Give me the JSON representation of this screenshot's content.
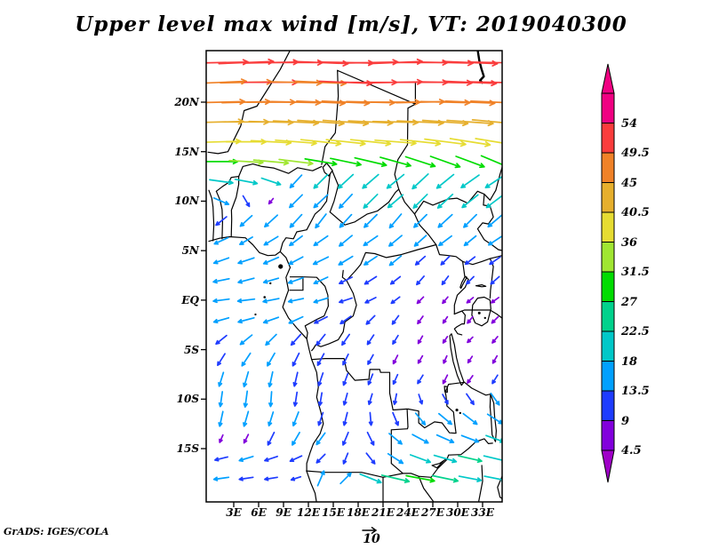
{
  "chart_data": {
    "type": "vector-field-map",
    "title": "Upper level max wind [m/s], VT: 2019040300",
    "variable": "Upper level max wind",
    "units": "m/s",
    "valid_time": "2019040300",
    "credit": "GrADS: IGES/COLA",
    "map_extent": {
      "lon_min": -0.3,
      "lon_max": 35.4,
      "lat_min": -20.4,
      "lat_max": 25.2
    },
    "x_axis": {
      "labels": [
        "3E",
        "6E",
        "9E",
        "12E",
        "15E",
        "18E",
        "21E",
        "24E",
        "27E",
        "30E",
        "33E"
      ],
      "lons": [
        3,
        6,
        9,
        12,
        15,
        18,
        21,
        24,
        27,
        30,
        33
      ]
    },
    "y_axis": {
      "labels": [
        "20N",
        "15N",
        "10N",
        "5N",
        "EQ",
        "5S",
        "10S",
        "15S"
      ],
      "lats": [
        20,
        15,
        10,
        5,
        0,
        -5,
        -10,
        -15
      ]
    },
    "colorbar": {
      "orientation": "vertical-right",
      "levels": [
        4.5,
        9,
        13.5,
        18,
        22.5,
        27,
        31.5,
        36,
        40.5,
        45,
        49.5,
        54
      ],
      "labels": [
        "4.5",
        "9",
        "13.5",
        "18",
        "22.5",
        "27",
        "31.5",
        "36",
        "40.5",
        "45",
        "49.5",
        "54"
      ],
      "colors": [
        "#A000C8",
        "#8200DC",
        "#1E3CFF",
        "#00A0FF",
        "#00C8C8",
        "#00D28C",
        "#00DC00",
        "#A0E632",
        "#E6DC32",
        "#E6AF2D",
        "#F08228",
        "#FA3C3C",
        "#F00082"
      ]
    },
    "reference_vector": {
      "value": 10,
      "label": "10"
    },
    "wind_grid": {
      "lons": [
        1.5,
        4.5,
        7.5,
        10.5,
        13.5,
        16.5,
        19.5,
        22.5,
        25.5,
        28.5,
        31.5,
        34.5
      ],
      "lats": [
        24,
        22,
        20,
        18,
        16,
        14,
        12,
        10,
        8,
        6,
        4,
        2,
        0,
        -2,
        -4,
        -6,
        -8,
        -10,
        -12,
        -14,
        -16,
        -18
      ],
      "uv": [
        [
          [
            51,
            1
          ],
          [
            52,
            2
          ],
          [
            52,
            1
          ],
          [
            51,
            0
          ],
          [
            52,
            -2
          ],
          [
            53,
            -1
          ],
          [
            52,
            1
          ],
          [
            51,
            2
          ],
          [
            52,
            0
          ],
          [
            53,
            -1
          ],
          [
            52,
            -2
          ],
          [
            51,
            -1
          ]
        ],
        [
          [
            48,
            2
          ],
          [
            49,
            1
          ],
          [
            50,
            0
          ],
          [
            49,
            -1
          ],
          [
            48,
            -2
          ],
          [
            50,
            -2
          ],
          [
            50,
            0
          ],
          [
            51,
            1
          ],
          [
            52,
            0
          ],
          [
            51,
            -1
          ],
          [
            50,
            -2
          ],
          [
            50,
            -1
          ]
        ],
        [
          [
            45,
            1
          ],
          [
            46,
            1
          ],
          [
            46,
            0
          ],
          [
            47,
            -1
          ],
          [
            46,
            -2
          ],
          [
            45,
            -2
          ],
          [
            46,
            -1
          ],
          [
            47,
            0
          ],
          [
            46,
            1
          ],
          [
            47,
            -1
          ],
          [
            47,
            -2
          ],
          [
            46,
            -2
          ]
        ],
        [
          [
            42,
            1
          ],
          [
            43,
            0
          ],
          [
            42,
            -1
          ],
          [
            43,
            -2
          ],
          [
            44,
            -3
          ],
          [
            43,
            -3
          ],
          [
            42,
            -2
          ],
          [
            43,
            -1
          ],
          [
            44,
            -2
          ],
          [
            43,
            -3
          ],
          [
            44,
            -3
          ],
          [
            43,
            -4
          ]
        ],
        [
          [
            37,
            1
          ],
          [
            38,
            0
          ],
          [
            38,
            -2
          ],
          [
            39,
            -3
          ],
          [
            38,
            -4
          ],
          [
            37,
            -4
          ],
          [
            38,
            -4
          ],
          [
            39,
            -3
          ],
          [
            38,
            -4
          ],
          [
            39,
            -5
          ],
          [
            38,
            -6
          ],
          [
            37,
            -6
          ]
        ],
        [
          [
            31,
            0
          ],
          [
            32,
            -2
          ],
          [
            33,
            -3
          ],
          [
            32,
            -4
          ],
          [
            30,
            -5
          ],
          [
            29,
            -6
          ],
          [
            30,
            -7
          ],
          [
            29,
            -8
          ],
          [
            28,
            -9
          ],
          [
            28,
            -10
          ],
          [
            27,
            -10
          ],
          [
            26,
            -11
          ]
        ],
        [
          [
            22,
            -3
          ],
          [
            21,
            -4
          ],
          [
            18,
            -6
          ],
          [
            -11,
            -12
          ],
          [
            -13,
            -13
          ],
          [
            -14,
            -13
          ],
          [
            -15,
            -13
          ],
          [
            -16,
            -13
          ],
          [
            -15,
            -14
          ],
          [
            -16,
            -13
          ],
          [
            -17,
            -12
          ],
          [
            -18,
            -12
          ]
        ],
        [
          [
            14,
            -6
          ],
          [
            6,
            -10
          ],
          [
            -4,
            -5
          ],
          [
            -12,
            -12
          ],
          [
            -13,
            -12
          ],
          [
            -12,
            -13
          ],
          [
            -13,
            -13
          ],
          [
            -14,
            -12
          ],
          [
            -13,
            -13
          ],
          [
            -14,
            -13
          ],
          [
            -15,
            -12
          ],
          [
            -16,
            -12
          ]
        ],
        [
          [
            -10,
            -8
          ],
          [
            -11,
            -10
          ],
          [
            -12,
            -11
          ],
          [
            -11,
            -12
          ],
          [
            -10,
            -13
          ],
          [
            -11,
            -12
          ],
          [
            -12,
            -12
          ],
          [
            -11,
            -13
          ],
          [
            -12,
            -12
          ],
          [
            -13,
            -12
          ],
          [
            -12,
            -12
          ],
          [
            -13,
            -11
          ]
        ],
        [
          [
            -13,
            -6
          ],
          [
            -12,
            -7
          ],
          [
            -13,
            -8
          ],
          [
            -12,
            -9
          ],
          [
            -13,
            -9
          ],
          [
            -12,
            -10
          ],
          [
            -13,
            -9
          ],
          [
            -12,
            -10
          ],
          [
            -11,
            -10
          ],
          [
            -12,
            -9
          ],
          [
            -11,
            -9
          ],
          [
            -12,
            -8
          ]
        ],
        [
          [
            -14,
            -5
          ],
          [
            -15,
            -5
          ],
          [
            -14,
            -6
          ],
          [
            -13,
            -7
          ],
          [
            -14,
            -7
          ],
          [
            -13,
            -8
          ],
          [
            -12,
            -8
          ],
          [
            -11,
            -9
          ],
          [
            -9,
            -8
          ],
          [
            -8,
            -8
          ],
          [
            -9,
            -7
          ],
          [
            -10,
            -7
          ]
        ],
        [
          [
            -15,
            -3
          ],
          [
            -15,
            -4
          ],
          [
            -14,
            -4
          ],
          [
            -14,
            -5
          ],
          [
            -13,
            -6
          ],
          [
            -12,
            -6
          ],
          [
            -11,
            -7
          ],
          [
            -9,
            -7
          ],
          [
            -7,
            -8
          ],
          [
            -6,
            -8
          ],
          [
            -7,
            -7
          ],
          [
            -8,
            -7
          ]
        ],
        [
          [
            -15,
            -2
          ],
          [
            -16,
            -2
          ],
          [
            -15,
            -3
          ],
          [
            -14,
            -3
          ],
          [
            -13,
            -4
          ],
          [
            -12,
            -4
          ],
          [
            -10,
            -5
          ],
          [
            -8,
            -6
          ],
          [
            -6,
            -6
          ],
          [
            -5,
            -6
          ],
          [
            -6,
            -5
          ],
          [
            -7,
            -5
          ]
        ],
        [
          [
            -14,
            -4
          ],
          [
            -15,
            -4
          ],
          [
            -14,
            -5
          ],
          [
            -13,
            -6
          ],
          [
            -12,
            -6
          ],
          [
            -10,
            -7
          ],
          [
            -8,
            -8
          ],
          [
            -6,
            -8
          ],
          [
            -5,
            -7
          ],
          [
            -4,
            -6
          ],
          [
            -5,
            -6
          ],
          [
            -6,
            -6
          ]
        ],
        [
          [
            -10,
            -8
          ],
          [
            -11,
            -9
          ],
          [
            -10,
            -10
          ],
          [
            -9,
            -10
          ],
          [
            -8,
            -10
          ],
          [
            -7,
            -10
          ],
          [
            -6,
            -9
          ],
          [
            -5,
            -8
          ],
          [
            -4,
            -7
          ],
          [
            -4,
            -6
          ],
          [
            -5,
            -5
          ],
          [
            -5,
            -6
          ]
        ],
        [
          [
            -7,
            -11
          ],
          [
            -8,
            -12
          ],
          [
            -7,
            -12
          ],
          [
            -6,
            -12
          ],
          [
            -6,
            -11
          ],
          [
            -5,
            -10
          ],
          [
            -5,
            -9
          ],
          [
            -4,
            -8
          ],
          [
            -4,
            -7
          ],
          [
            -3,
            -7
          ],
          [
            -4,
            -6
          ],
          [
            -4,
            -7
          ]
        ],
        [
          [
            -4,
            -13
          ],
          [
            -4,
            -14
          ],
          [
            -3,
            -14
          ],
          [
            -3,
            -13
          ],
          [
            -4,
            -12
          ],
          [
            -4,
            -11
          ],
          [
            -4,
            -10
          ],
          [
            -4,
            -9
          ],
          [
            -5,
            -8
          ],
          [
            -4,
            -8
          ],
          [
            -5,
            -7
          ],
          [
            -5,
            -8
          ]
        ],
        [
          [
            -2,
            -14
          ],
          [
            -2,
            -15
          ],
          [
            -1,
            -14
          ],
          [
            -2,
            -13
          ],
          [
            -2,
            -12
          ],
          [
            -3,
            -11
          ],
          [
            -3,
            -10
          ],
          [
            -2,
            -10
          ],
          [
            3,
            -9
          ],
          [
            5,
            -9
          ],
          [
            7,
            -10
          ],
          [
            8,
            -11
          ]
        ],
        [
          [
            -3,
            -14
          ],
          [
            -4,
            -14
          ],
          [
            -4,
            -13
          ],
          [
            -5,
            -13
          ],
          [
            -4,
            -12
          ],
          [
            -3,
            -12
          ],
          [
            1,
            -12
          ],
          [
            5,
            -12
          ],
          [
            9,
            -11
          ],
          [
            12,
            -10
          ],
          [
            13,
            -10
          ],
          [
            14,
            -9
          ]
        ],
        [
          [
            -3,
            -7
          ],
          [
            -4,
            -8
          ],
          [
            -6,
            -12
          ],
          [
            -7,
            -12
          ],
          [
            -8,
            -11
          ],
          [
            -5,
            -12
          ],
          [
            6,
            -12
          ],
          [
            12,
            -10
          ],
          [
            15,
            -8
          ],
          [
            16,
            -7
          ],
          [
            16,
            -6
          ],
          [
            17,
            -6
          ]
        ],
        [
          [
            -12,
            -3
          ],
          [
            -13,
            -4
          ],
          [
            -12,
            -4
          ],
          [
            -11,
            -5
          ],
          [
            -8,
            -8
          ],
          [
            -4,
            -10
          ],
          [
            8,
            -10
          ],
          [
            14,
            -9
          ],
          [
            19,
            -7
          ],
          [
            21,
            -6
          ],
          [
            22,
            -5
          ],
          [
            21,
            -5
          ]
        ],
        [
          [
            -14,
            -2
          ],
          [
            -13,
            -2
          ],
          [
            -12,
            -2
          ],
          [
            -9,
            -3
          ],
          [
            6,
            14
          ],
          [
            10,
            10
          ],
          [
            20,
            -8
          ],
          [
            26,
            -6
          ],
          [
            27,
            -5
          ],
          [
            24,
            -5
          ],
          [
            21,
            -4
          ],
          [
            20,
            -4
          ]
        ]
      ]
    }
  }
}
